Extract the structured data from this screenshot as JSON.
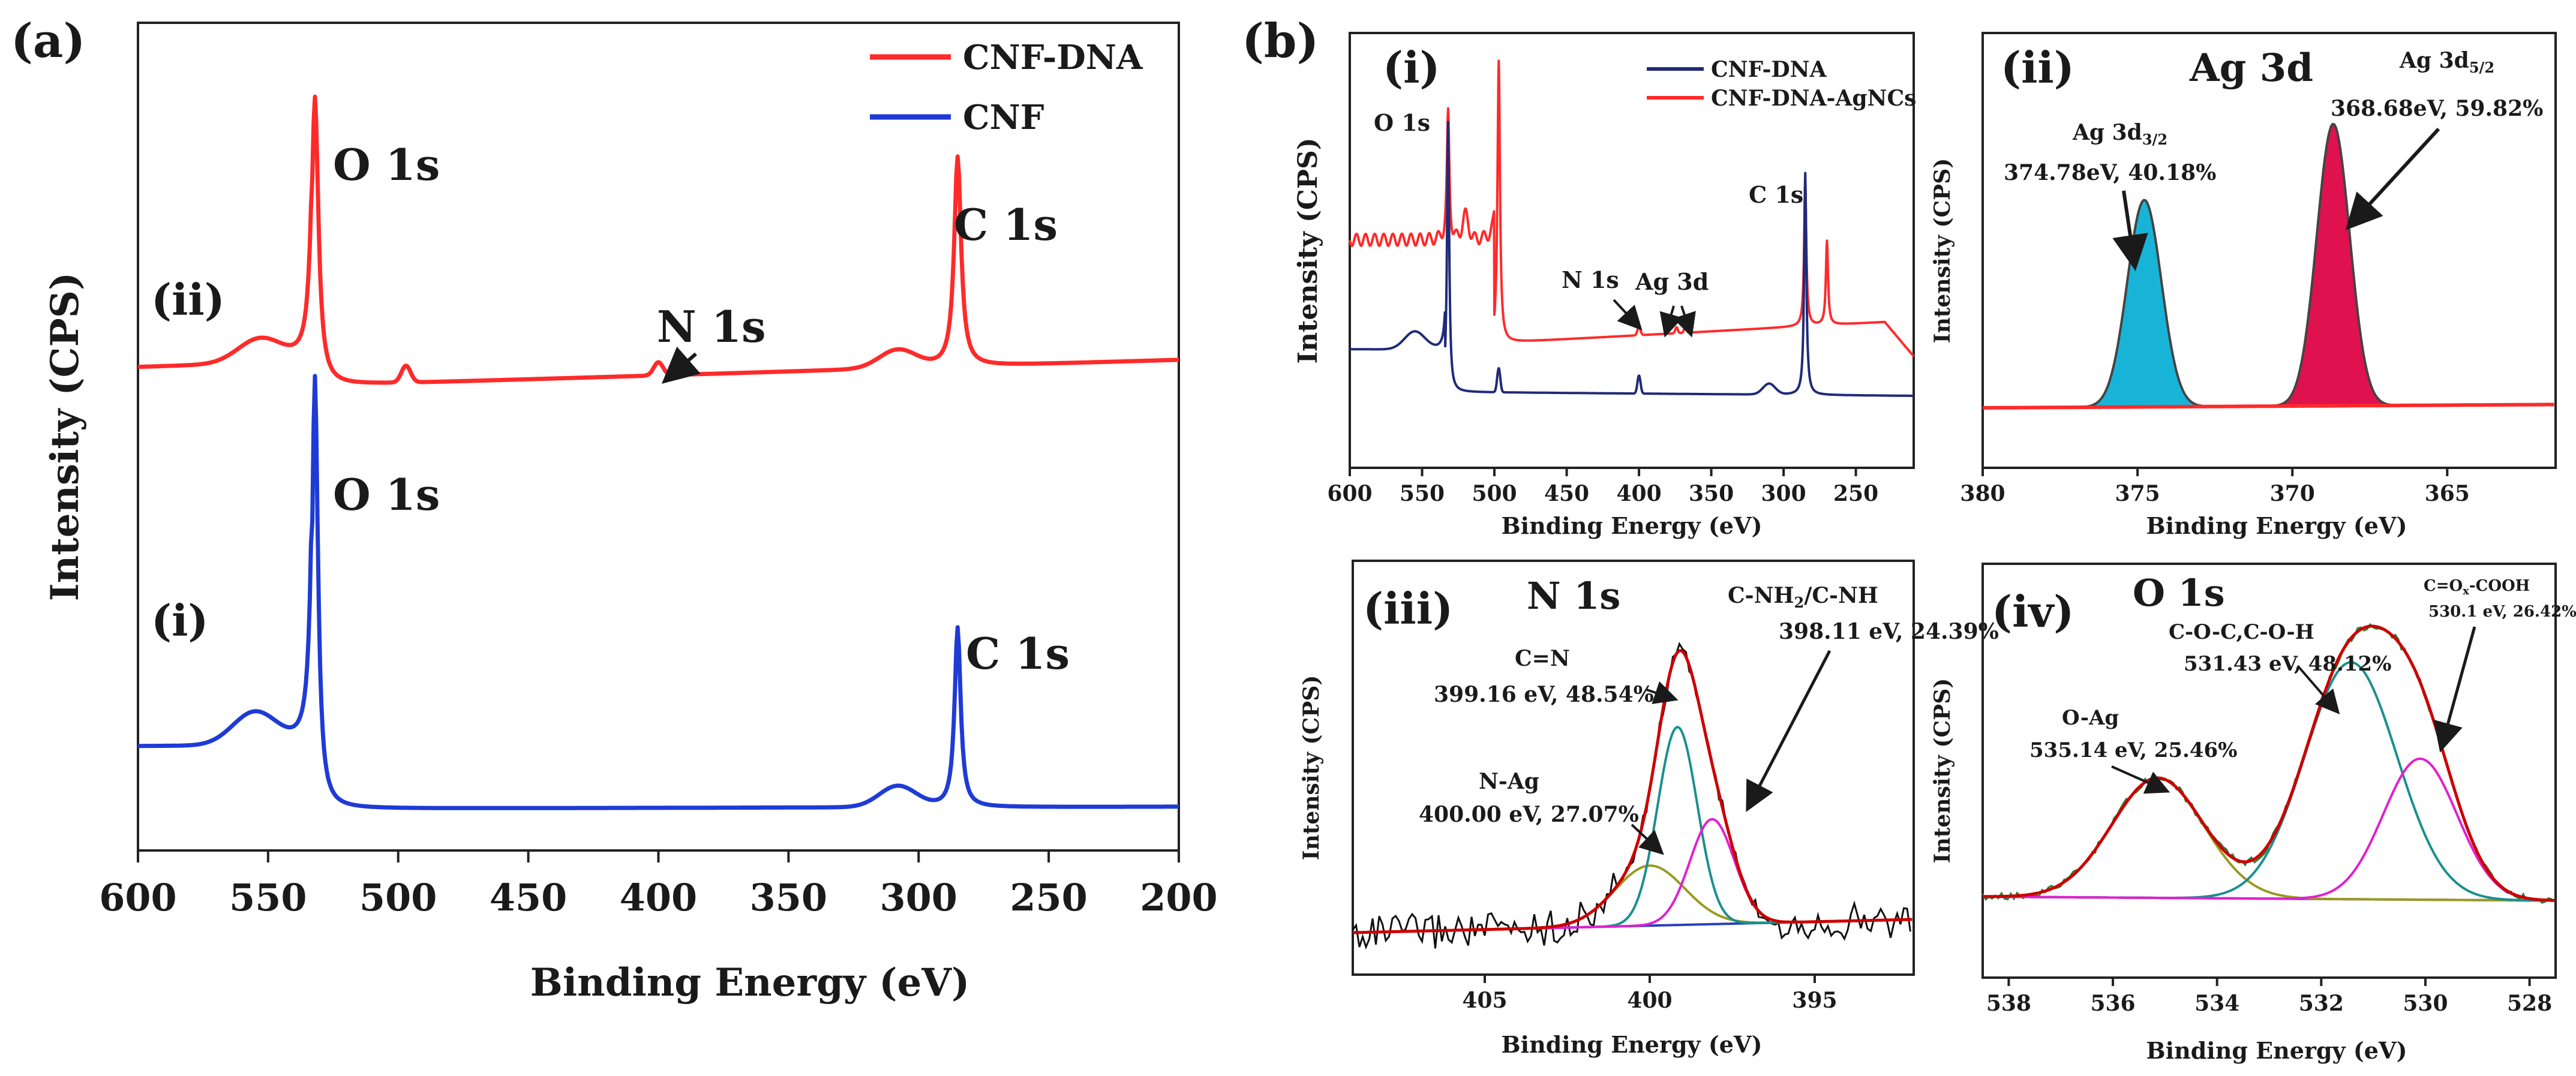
{
  "panel_a_label": "(a)",
  "panel_b_label": "(b)",
  "colors": {
    "red": "#ff2a2a",
    "blue": "#1f3bd6",
    "navy": "#1f2a78",
    "cyan": "#18b4d8",
    "crimson": "#e0114f",
    "teal": "#1a8f8f",
    "magenta": "#e020d0",
    "olive": "#9a9a20",
    "dark_red": "#cc0000",
    "green": "#2e7d32"
  },
  "chart_data": [
    {
      "id": "a",
      "type": "line",
      "xlabel": "Binding Energy (eV)",
      "ylabel": "Intensity (CPS)",
      "xlim": [
        600,
        200
      ],
      "x_ticks": [
        "600",
        "550",
        "500",
        "450",
        "400",
        "350",
        "300",
        "250",
        "200"
      ],
      "legend": [
        "CNF-DNA",
        "CNF"
      ],
      "series": [
        {
          "name": "CNF-DNA",
          "curve_label": "(ii)",
          "peaks": [
            {
              "label": "O 1s",
              "x": 532
            },
            {
              "label": "N 1s",
              "x": 400
            },
            {
              "label": "C 1s",
              "x": 285
            }
          ]
        },
        {
          "name": "CNF",
          "curve_label": "(i)",
          "peaks": [
            {
              "label": "O 1s",
              "x": 532
            },
            {
              "label": "C 1s",
              "x": 285
            }
          ]
        }
      ]
    },
    {
      "id": "b-i",
      "type": "line",
      "panel_label": "(i)",
      "xlabel": "Binding Energy (eV)",
      "ylabel": "Intensity (CPS)",
      "xlim": [
        600,
        210
      ],
      "x_ticks": [
        "600",
        "550",
        "500",
        "450",
        "400",
        "350",
        "300",
        "250"
      ],
      "legend": [
        "CNF-DNA",
        "CNF-DNA-AgNCs"
      ],
      "annotations": [
        "O 1s",
        "N 1s",
        "Ag 3d",
        "C 1s"
      ]
    },
    {
      "id": "b-ii",
      "type": "area",
      "panel_label": "(ii)",
      "title": "Ag 3d",
      "xlabel": "Binding Energy (eV)",
      "ylabel": "Intensity (CPS)",
      "xlim": [
        380,
        361.5
      ],
      "x_ticks": [
        "380",
        "375",
        "370",
        "365"
      ],
      "peaks": [
        {
          "name": "Ag 3d3/2",
          "label_main": "Ag 3d",
          "label_sub": "3/2",
          "center": 374.78,
          "text": "374.78eV, 40.18%"
        },
        {
          "name": "Ag 3d5/2",
          "label_main": "Ag 3d",
          "label_sub": "5/2",
          "center": 368.68,
          "text": "368.68eV, 59.82%"
        }
      ]
    },
    {
      "id": "b-iii",
      "type": "line",
      "panel_label": "(iii)",
      "title": "N 1s",
      "xlabel": "Binding Energy (eV)",
      "ylabel": "Intensity (CPS)",
      "xlim": [
        409,
        392
      ],
      "x_ticks": [
        "405",
        "400",
        "395"
      ],
      "components": [
        {
          "name": "C=N",
          "text": "399.16 eV, 48.54%",
          "center": 399.16
        },
        {
          "name": "C-NH2/C-NH",
          "text": "398.11 eV, 24.39%",
          "center": 398.11
        },
        {
          "name": "N-Ag",
          "text": "400.00 eV, 27.07%",
          "center": 400.0
        }
      ],
      "comp_labels": {
        "cn": "C=N",
        "nh_main": "C-NH",
        "nh_sub": "2",
        "nh_tail": "/C-NH",
        "nag": "N-Ag"
      }
    },
    {
      "id": "b-iv",
      "type": "line",
      "panel_label": "(iv)",
      "title": "O 1s",
      "xlabel": "Binding Energy (eV)",
      "ylabel": "Intensity (CPS)",
      "xlim": [
        538.5,
        527.5
      ],
      "x_ticks": [
        "538",
        "536",
        "534",
        "532",
        "530",
        "528"
      ],
      "components": [
        {
          "name": "O-Ag",
          "text": "535.14 eV, 25.46%",
          "center": 535.14
        },
        {
          "name": "C-O-C,C-O-H",
          "text": "531.43 eV, 48.12%",
          "center": 531.43
        },
        {
          "name": "C=Ox-COOH",
          "text": "530.1 eV, 26.42%",
          "center": 530.1
        }
      ],
      "comp_labels": {
        "oag": "O-Ag",
        "coc": "C-O-C,C-O-H",
        "cox_main": "C=O",
        "cox_sub": "x",
        "cox_tail": "-COOH"
      }
    }
  ]
}
